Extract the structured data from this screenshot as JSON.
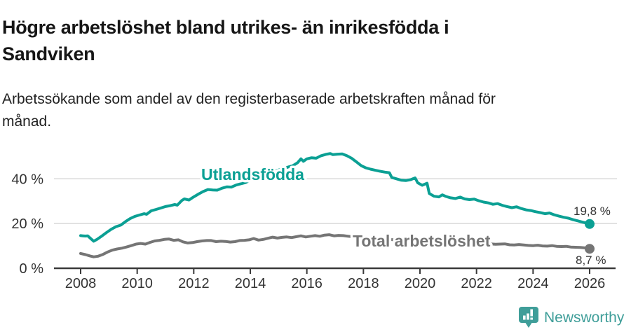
{
  "header": {
    "title_lines": [
      "Högre arbetslöshet bland utrikes- än inrikesfödda i",
      "Sandviken"
    ],
    "subtitle_lines": [
      "Arbetssökande som andel av den registerbaserade arbetskraften månad för",
      "månad."
    ]
  },
  "footer": {
    "brand": "Newsworthy",
    "brand_color": "#3f9e99",
    "icon": "newsworthy-speech-bubble-bar-chart"
  },
  "chart_data": {
    "type": "line",
    "title": "Högre arbetslöshet bland utrikes- än inrikesfödda i Sandviken",
    "subtitle": "Arbetssökande som andel av den registerbaserade arbetskraften månad för månad.",
    "grid": "horizontal",
    "legend_position": "inline-labels",
    "colors": {
      "axis": "#3a3a3a",
      "grid": "#d9d9d9",
      "text": "#333333"
    },
    "x_axis": {
      "ticks": [
        2008,
        2010,
        2012,
        2014,
        2016,
        2018,
        2020,
        2022,
        2024,
        2026
      ],
      "min": 2007,
      "max": 2026.9
    },
    "y_axis": {
      "ticks": [
        0,
        20,
        40
      ],
      "tick_labels": [
        "0 %",
        "20 %",
        "40 %"
      ],
      "min": 0,
      "max": 54,
      "unit": "%"
    },
    "series": [
      {
        "name": "Utlandsfödda",
        "color": "#0ba094",
        "end_label": "19,8 %",
        "end_value": 19.8,
        "points": [
          [
            2008.0,
            14.6
          ],
          [
            2008.08,
            14.5
          ],
          [
            2008.17,
            14.4
          ],
          [
            2008.25,
            14.5
          ],
          [
            2008.33,
            13.6
          ],
          [
            2008.46,
            12.1
          ],
          [
            2008.58,
            12.9
          ],
          [
            2008.75,
            14.4
          ],
          [
            2008.92,
            16.0
          ],
          [
            2009.08,
            17.4
          ],
          [
            2009.25,
            18.6
          ],
          [
            2009.42,
            19.3
          ],
          [
            2009.58,
            20.8
          ],
          [
            2009.75,
            22.2
          ],
          [
            2009.92,
            23.2
          ],
          [
            2010.08,
            23.8
          ],
          [
            2010.25,
            24.4
          ],
          [
            2010.33,
            24.1
          ],
          [
            2010.5,
            25.7
          ],
          [
            2010.67,
            26.3
          ],
          [
            2010.83,
            26.9
          ],
          [
            2011.0,
            27.6
          ],
          [
            2011.17,
            28.0
          ],
          [
            2011.33,
            28.5
          ],
          [
            2011.42,
            28.2
          ],
          [
            2011.58,
            30.3
          ],
          [
            2011.67,
            31.0
          ],
          [
            2011.83,
            30.5
          ],
          [
            2012.0,
            31.9
          ],
          [
            2012.17,
            33.2
          ],
          [
            2012.33,
            34.3
          ],
          [
            2012.5,
            35.2
          ],
          [
            2012.67,
            35.0
          ],
          [
            2012.83,
            34.9
          ],
          [
            2013.0,
            35.8
          ],
          [
            2013.17,
            36.4
          ],
          [
            2013.33,
            36.3
          ],
          [
            2013.5,
            37.2
          ],
          [
            2013.67,
            37.8
          ],
          [
            2013.83,
            38.3
          ],
          [
            2014.0,
            39.4
          ],
          [
            2014.17,
            40.2
          ],
          [
            2014.33,
            40.9
          ],
          [
            2014.5,
            41.7
          ],
          [
            2014.67,
            42.5
          ],
          [
            2014.83,
            43.2
          ],
          [
            2015.0,
            43.9
          ],
          [
            2015.17,
            44.6
          ],
          [
            2015.33,
            45.2
          ],
          [
            2015.5,
            45.8
          ],
          [
            2015.67,
            47.2
          ],
          [
            2015.79,
            48.9
          ],
          [
            2015.88,
            47.8
          ],
          [
            2016.0,
            48.9
          ],
          [
            2016.17,
            49.4
          ],
          [
            2016.33,
            49.2
          ],
          [
            2016.5,
            50.3
          ],
          [
            2016.67,
            50.9
          ],
          [
            2016.83,
            51.3
          ],
          [
            2016.92,
            50.8
          ],
          [
            2017.08,
            51.0
          ],
          [
            2017.25,
            51.1
          ],
          [
            2017.42,
            50.3
          ],
          [
            2017.58,
            49.2
          ],
          [
            2017.75,
            47.6
          ],
          [
            2017.92,
            45.9
          ],
          [
            2018.08,
            44.9
          ],
          [
            2018.25,
            44.3
          ],
          [
            2018.42,
            43.8
          ],
          [
            2018.58,
            43.4
          ],
          [
            2018.75,
            43.0
          ],
          [
            2018.92,
            42.7
          ],
          [
            2019.0,
            40.6
          ],
          [
            2019.17,
            40.0
          ],
          [
            2019.33,
            39.4
          ],
          [
            2019.5,
            39.2
          ],
          [
            2019.67,
            39.6
          ],
          [
            2019.83,
            40.4
          ],
          [
            2019.92,
            38.2
          ],
          [
            2020.08,
            37.1
          ],
          [
            2020.25,
            38.0
          ],
          [
            2020.33,
            33.4
          ],
          [
            2020.5,
            32.2
          ],
          [
            2020.67,
            31.9
          ],
          [
            2020.79,
            32.8
          ],
          [
            2020.92,
            32.1
          ],
          [
            2021.08,
            31.5
          ],
          [
            2021.25,
            31.2
          ],
          [
            2021.42,
            31.8
          ],
          [
            2021.58,
            31.0
          ],
          [
            2021.75,
            30.7
          ],
          [
            2021.92,
            30.9
          ],
          [
            2022.08,
            30.2
          ],
          [
            2022.25,
            29.6
          ],
          [
            2022.42,
            29.2
          ],
          [
            2022.58,
            28.6
          ],
          [
            2022.75,
            28.9
          ],
          [
            2022.92,
            28.1
          ],
          [
            2023.08,
            27.6
          ],
          [
            2023.25,
            27.1
          ],
          [
            2023.42,
            27.5
          ],
          [
            2023.58,
            26.7
          ],
          [
            2023.75,
            26.1
          ],
          [
            2023.92,
            25.8
          ],
          [
            2024.08,
            25.3
          ],
          [
            2024.25,
            24.9
          ],
          [
            2024.42,
            24.4
          ],
          [
            2024.58,
            24.7
          ],
          [
            2024.75,
            23.9
          ],
          [
            2024.92,
            23.3
          ],
          [
            2025.08,
            22.8
          ],
          [
            2025.25,
            22.4
          ],
          [
            2025.42,
            21.7
          ],
          [
            2025.58,
            21.2
          ],
          [
            2025.75,
            20.6
          ],
          [
            2025.92,
            20.1
          ],
          [
            2026.0,
            19.8
          ]
        ]
      },
      {
        "name": "Total arbetslöshet",
        "color": "#757575",
        "end_label": "8,7 %",
        "end_value": 8.7,
        "points": [
          [
            2008.0,
            6.6
          ],
          [
            2008.17,
            6.1
          ],
          [
            2008.33,
            5.5
          ],
          [
            2008.46,
            5.1
          ],
          [
            2008.62,
            5.4
          ],
          [
            2008.79,
            6.2
          ],
          [
            2008.96,
            7.3
          ],
          [
            2009.12,
            8.1
          ],
          [
            2009.29,
            8.6
          ],
          [
            2009.46,
            9.0
          ],
          [
            2009.62,
            9.5
          ],
          [
            2009.79,
            10.1
          ],
          [
            2009.96,
            10.8
          ],
          [
            2010.12,
            11.1
          ],
          [
            2010.29,
            10.8
          ],
          [
            2010.46,
            11.6
          ],
          [
            2010.62,
            12.2
          ],
          [
            2010.79,
            12.5
          ],
          [
            2010.96,
            12.9
          ],
          [
            2011.12,
            13.1
          ],
          [
            2011.29,
            12.5
          ],
          [
            2011.46,
            12.7
          ],
          [
            2011.62,
            11.8
          ],
          [
            2011.79,
            11.3
          ],
          [
            2011.96,
            11.5
          ],
          [
            2012.12,
            11.9
          ],
          [
            2012.29,
            12.2
          ],
          [
            2012.46,
            12.4
          ],
          [
            2012.62,
            12.4
          ],
          [
            2012.79,
            11.9
          ],
          [
            2012.96,
            12.1
          ],
          [
            2013.12,
            12.0
          ],
          [
            2013.29,
            11.7
          ],
          [
            2013.46,
            11.9
          ],
          [
            2013.62,
            12.4
          ],
          [
            2013.79,
            12.5
          ],
          [
            2013.96,
            12.7
          ],
          [
            2014.12,
            13.3
          ],
          [
            2014.29,
            12.6
          ],
          [
            2014.46,
            12.9
          ],
          [
            2014.62,
            13.4
          ],
          [
            2014.79,
            13.9
          ],
          [
            2014.96,
            13.5
          ],
          [
            2015.12,
            13.8
          ],
          [
            2015.29,
            14.0
          ],
          [
            2015.46,
            13.7
          ],
          [
            2015.62,
            14.1
          ],
          [
            2015.79,
            14.5
          ],
          [
            2015.96,
            14.0
          ],
          [
            2016.12,
            14.3
          ],
          [
            2016.29,
            14.6
          ],
          [
            2016.46,
            14.3
          ],
          [
            2016.62,
            14.8
          ],
          [
            2016.79,
            15.0
          ],
          [
            2016.96,
            14.5
          ],
          [
            2017.12,
            14.7
          ],
          [
            2017.29,
            14.6
          ],
          [
            2017.46,
            14.3
          ],
          [
            2017.62,
            14.1
          ],
          [
            2017.83,
            13.9
          ],
          [
            2018.04,
            13.7
          ],
          [
            2018.25,
            13.4
          ],
          [
            2018.5,
            13.2
          ],
          [
            2018.75,
            13.0
          ],
          [
            2019.0,
            12.8
          ],
          [
            2019.25,
            12.6
          ],
          [
            2019.5,
            12.4
          ],
          [
            2019.75,
            12.3
          ],
          [
            2020.0,
            12.6
          ],
          [
            2020.25,
            13.1
          ],
          [
            2020.5,
            12.9
          ],
          [
            2020.75,
            12.6
          ],
          [
            2021.0,
            12.3
          ],
          [
            2021.25,
            12.0
          ],
          [
            2021.5,
            11.8
          ],
          [
            2021.75,
            11.6
          ],
          [
            2022.0,
            11.4
          ],
          [
            2022.17,
            11.2
          ],
          [
            2022.33,
            11.0
          ],
          [
            2022.5,
            10.9
          ],
          [
            2022.67,
            10.7
          ],
          [
            2022.83,
            10.8
          ],
          [
            2023.0,
            10.9
          ],
          [
            2023.17,
            10.5
          ],
          [
            2023.33,
            10.4
          ],
          [
            2023.5,
            10.6
          ],
          [
            2023.67,
            10.4
          ],
          [
            2023.83,
            10.2
          ],
          [
            2024.0,
            10.1
          ],
          [
            2024.17,
            10.3
          ],
          [
            2024.33,
            10.0
          ],
          [
            2024.5,
            9.9
          ],
          [
            2024.67,
            10.1
          ],
          [
            2024.83,
            9.8
          ],
          [
            2025.0,
            9.7
          ],
          [
            2025.17,
            9.8
          ],
          [
            2025.33,
            9.5
          ],
          [
            2025.5,
            9.4
          ],
          [
            2025.67,
            9.3
          ],
          [
            2025.83,
            9.1
          ],
          [
            2025.96,
            8.9
          ],
          [
            2026.0,
            8.7
          ]
        ]
      }
    ]
  }
}
